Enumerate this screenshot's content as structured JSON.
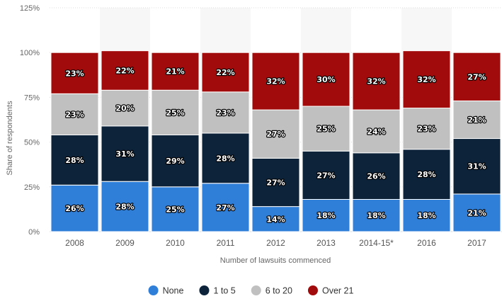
{
  "chart_data": {
    "type": "bar",
    "stacked": true,
    "categories": [
      "2008",
      "2009",
      "2010",
      "2011",
      "2012",
      "2013",
      "2014-15*",
      "2016",
      "2017"
    ],
    "series": [
      {
        "name": "None",
        "color": "#2f7ed8",
        "values": [
          26,
          28,
          25,
          27,
          14,
          18,
          18,
          18,
          21
        ]
      },
      {
        "name": "1 to 5",
        "color": "#0d233a",
        "values": [
          28,
          31,
          29,
          28,
          27,
          27,
          26,
          28,
          31
        ]
      },
      {
        "name": "6 to 20",
        "color": "#c0c0c0",
        "values": [
          23,
          20,
          25,
          23,
          27,
          25,
          24,
          23,
          21
        ]
      },
      {
        "name": "Over 21",
        "color": "#a20b0b",
        "values": [
          23,
          22,
          21,
          22,
          32,
          30,
          32,
          32,
          27
        ]
      }
    ],
    "data_label_suffix": "%",
    "xlabel": "Number of lawsuits commenced",
    "ylabel": "Share of respondents",
    "ylim": [
      0,
      125
    ],
    "yticks": [
      0,
      25,
      50,
      75,
      100,
      125
    ],
    "ytick_suffix": "%",
    "grid": true,
    "alternating_column_bands": true,
    "legend_position": "bottom-center"
  }
}
